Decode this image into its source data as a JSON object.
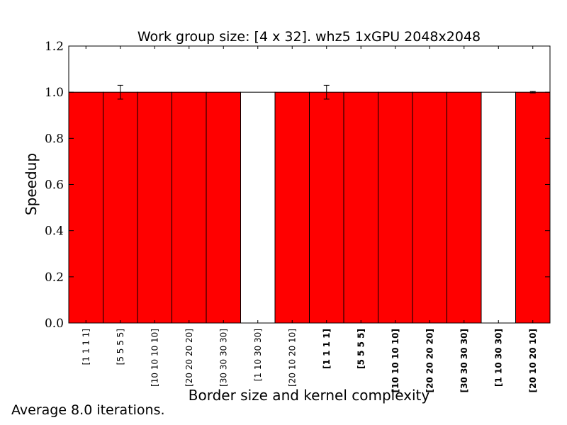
{
  "footnote": "Average 8.0 iterations.",
  "colors": {
    "bar_fill_red": "#ff0000",
    "bar_fill_white": "#ffffff",
    "bar_stroke": "#000000"
  },
  "chart_data": {
    "type": "bar",
    "title": "Work group size: [4 x 32]. whz5 1xGPU 2048x2048",
    "xlabel": "Border size and kernel complexity",
    "ylabel": "Speedup",
    "ylim": [
      0,
      1.2
    ],
    "yticks": [
      "0.0",
      "0.2",
      "0.4",
      "0.6",
      "0.8",
      "1.0",
      "1.2"
    ],
    "grid": false,
    "categories": [
      "[1 1 1 1]",
      "[5 5 5 5]",
      "[10 10 10 10]",
      "[20 20 20 20]",
      "[30 30 30 30]",
      "[1 10 30 30]",
      "[20 10 20 10]",
      "[1 1 1 1]",
      "[5 5 5 5]",
      "[10 10 10 10]",
      "[20 20 20 20]",
      "[30 30 30 30]",
      "[1 10 30 30]",
      "[20 10 20 10]"
    ],
    "bold_labels": [
      false,
      false,
      false,
      false,
      false,
      false,
      false,
      true,
      true,
      true,
      true,
      true,
      true,
      true
    ],
    "values": [
      1.0,
      1.0,
      1.0,
      1.0,
      1.0,
      1.0,
      1.0,
      1.0,
      1.0,
      1.0,
      1.0,
      1.0,
      1.0,
      1.0
    ],
    "fill": [
      "red",
      "red",
      "red",
      "red",
      "red",
      "white",
      "red",
      "red",
      "red",
      "red",
      "red",
      "red",
      "white",
      "red"
    ],
    "error": [
      0,
      0.03,
      0,
      0,
      0,
      0,
      0,
      0.03,
      0,
      0,
      0,
      0,
      0,
      0.003
    ]
  }
}
